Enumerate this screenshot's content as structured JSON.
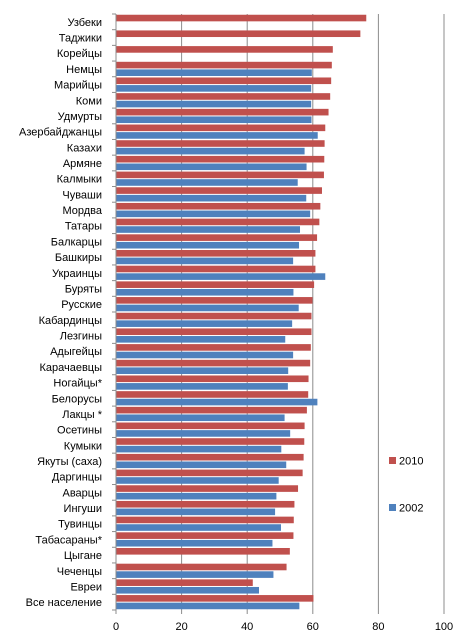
{
  "chart_data": {
    "type": "bar",
    "orientation": "horizontal",
    "title": "",
    "xlabel": "",
    "ylabel": "",
    "xlim": [
      0,
      100
    ],
    "xticks": [
      "0",
      "20",
      "40",
      "60",
      "80",
      "100"
    ],
    "grid": "vertical",
    "legend_position": "right",
    "categories": [
      "Узбеки",
      "Таджики",
      "Корейцы",
      "Немцы",
      "Марийцы",
      "Коми",
      "Удмурты",
      "Азербайджанцы",
      "Казахи",
      "Армяне",
      "Калмыки",
      "Чуваши",
      "Мордва",
      "Татары",
      "Балкарцы",
      "Башкиры",
      "Украинцы",
      "Буряты",
      "Русские",
      "Кабардинцы",
      "Лезгины",
      "Адыгейцы",
      "Карачаевцы",
      "Ногайцы*",
      "Белорусы",
      "Лакцы *",
      "Осетины",
      "Кумыки",
      "Якуты (саха)",
      "Даргинцы",
      "Аварцы",
      "Ингуши",
      "Тувинцы",
      "Табасараны*",
      "Цыгане",
      "Чеченцы",
      "Евреи",
      "Все население"
    ],
    "series": [
      {
        "name": "2010",
        "color": "#C0504D",
        "values": [
          76.3,
          74.5,
          66.1,
          65.8,
          65.6,
          65.3,
          64.8,
          63.8,
          63.6,
          63.5,
          63.4,
          62.8,
          62.3,
          62.0,
          61.3,
          60.8,
          60.8,
          60.4,
          59.9,
          59.6,
          59.6,
          59.4,
          59.2,
          58.7,
          58.6,
          58.2,
          57.5,
          57.4,
          57.2,
          56.9,
          55.5,
          54.4,
          54.2,
          54.1,
          53.0,
          52.0,
          41.7,
          60.2
        ]
      },
      {
        "name": "2002",
        "color": "#4F81BD",
        "values": [
          null,
          null,
          null,
          59.7,
          59.5,
          59.5,
          59.6,
          61.5,
          57.5,
          58.1,
          55.4,
          58.0,
          59.2,
          56.1,
          55.8,
          54.0,
          63.8,
          54.1,
          55.7,
          53.7,
          51.6,
          54.0,
          52.5,
          52.4,
          61.4,
          51.4,
          53.1,
          50.4,
          51.9,
          49.6,
          48.9,
          48.5,
          50.3,
          47.7,
          null,
          48.0,
          43.6,
          55.9
        ]
      }
    ]
  }
}
